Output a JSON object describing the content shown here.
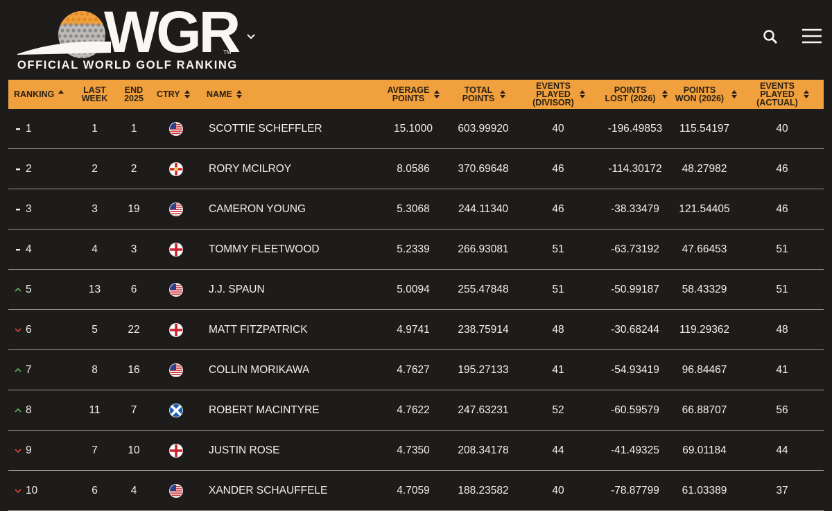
{
  "header": {
    "logo": "WGR",
    "trademark": "TM",
    "subtitle": "OFFICIAL WORLD GOLF RANKING"
  },
  "table": {
    "columns": [
      "RANKING",
      "LAST WEEK",
      "END 2025",
      "CTRY",
      "NAME",
      "AVERAGE POINTS",
      "TOTAL POINTS",
      "EVENTS PLAYED (DIVISOR)",
      "POINTS LOST (2026)",
      "POINTS WON (2026)",
      "EVENTS PLAYED (ACTUAL)"
    ],
    "rows": [
      {
        "movement": "same",
        "flag": "us",
        "cells": [
          "1",
          "1",
          "1",
          "SCOTTIE SCHEFFLER",
          "15.1000",
          "603.99920",
          "40",
          "-196.49853",
          "115.54197",
          "40"
        ]
      },
      {
        "movement": "same",
        "flag": "nir",
        "cells": [
          "2",
          "2",
          "2",
          "RORY MCILROY",
          "8.0586",
          "370.69648",
          "46",
          "-114.30172",
          "48.27982",
          "46"
        ]
      },
      {
        "movement": "same",
        "flag": "us",
        "cells": [
          "3",
          "3",
          "19",
          "CAMERON YOUNG",
          "5.3068",
          "244.11340",
          "46",
          "-38.33479",
          "121.54405",
          "46"
        ]
      },
      {
        "movement": "same",
        "flag": "eng",
        "cells": [
          "4",
          "4",
          "3",
          "TOMMY FLEETWOOD",
          "5.2339",
          "266.93081",
          "51",
          "-63.73192",
          "47.66453",
          "51"
        ]
      },
      {
        "movement": "up",
        "flag": "us",
        "cells": [
          "5",
          "13",
          "6",
          "J.J. SPAUN",
          "5.0094",
          "255.47848",
          "51",
          "-50.99187",
          "58.43329",
          "51"
        ]
      },
      {
        "movement": "down",
        "flag": "eng",
        "cells": [
          "6",
          "5",
          "22",
          "MATT FITZPATRICK",
          "4.9741",
          "238.75914",
          "48",
          "-30.68244",
          "119.29362",
          "48"
        ]
      },
      {
        "movement": "up",
        "flag": "us",
        "cells": [
          "7",
          "8",
          "16",
          "COLLIN MORIKAWA",
          "4.7627",
          "195.27133",
          "41",
          "-54.93419",
          "96.84467",
          "41"
        ]
      },
      {
        "movement": "up",
        "flag": "sco",
        "cells": [
          "8",
          "11",
          "7",
          "ROBERT MACINTYRE",
          "4.7622",
          "247.63231",
          "52",
          "-60.59579",
          "66.88707",
          "56"
        ]
      },
      {
        "movement": "down",
        "flag": "eng",
        "cells": [
          "9",
          "7",
          "10",
          "JUSTIN ROSE",
          "4.7350",
          "208.34178",
          "44",
          "-41.49325",
          "69.01184",
          "44"
        ]
      },
      {
        "movement": "down",
        "flag": "us",
        "cells": [
          "10",
          "6",
          "4",
          "XANDER SCHAUFFELE",
          "4.7059",
          "188.23582",
          "40",
          "-78.87799",
          "61.03389",
          "37"
        ]
      }
    ]
  }
}
